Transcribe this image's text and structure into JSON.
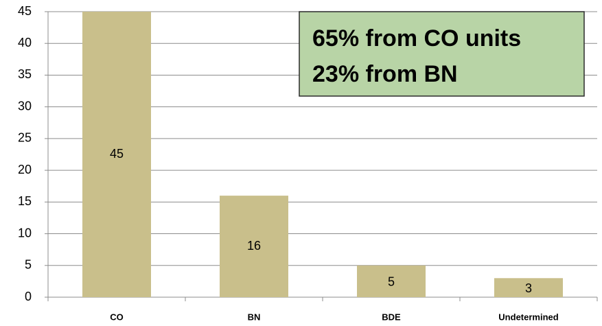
{
  "chart_data": {
    "type": "bar",
    "categories": [
      "CO",
      "BN",
      "BDE",
      "Undetermined"
    ],
    "values": [
      45,
      16,
      5,
      3
    ],
    "color": "#c9bf8b",
    "ylim": [
      0,
      45
    ],
    "yticks": [
      0,
      5,
      10,
      15,
      20,
      25,
      30,
      35,
      40,
      45
    ],
    "grid": true,
    "annotation": [
      "65% from CO units",
      "23% from BN"
    ]
  }
}
